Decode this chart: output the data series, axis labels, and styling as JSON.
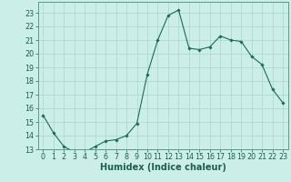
{
  "x": [
    0,
    1,
    2,
    3,
    4,
    5,
    6,
    7,
    8,
    9,
    10,
    11,
    12,
    13,
    14,
    15,
    16,
    17,
    18,
    19,
    20,
    21,
    22,
    23
  ],
  "y": [
    15.5,
    14.2,
    13.2,
    12.8,
    12.8,
    13.2,
    13.6,
    13.7,
    14.0,
    14.9,
    18.5,
    21.0,
    22.8,
    23.2,
    20.4,
    20.3,
    20.5,
    21.3,
    21.0,
    20.9,
    19.8,
    19.2,
    17.4,
    16.4
  ],
  "line_color": "#1a6b5a",
  "marker": "D",
  "marker_size": 1.8,
  "bg_color": "#cceee8",
  "grid_color": "#aad4ce",
  "xlabel": "Humidex (Indice chaleur)",
  "ylim": [
    13,
    23.8
  ],
  "xlim": [
    -0.5,
    23.5
  ],
  "yticks": [
    13,
    14,
    15,
    16,
    17,
    18,
    19,
    20,
    21,
    22,
    23
  ],
  "xticks": [
    0,
    1,
    2,
    3,
    4,
    5,
    6,
    7,
    8,
    9,
    10,
    11,
    12,
    13,
    14,
    15,
    16,
    17,
    18,
    19,
    20,
    21,
    22,
    23
  ],
  "tick_label_color": "#1a5f50",
  "axis_color": "#5a9a8a",
  "xlabel_fontsize": 7.0,
  "tick_fontsize": 5.8,
  "linewidth": 0.8
}
